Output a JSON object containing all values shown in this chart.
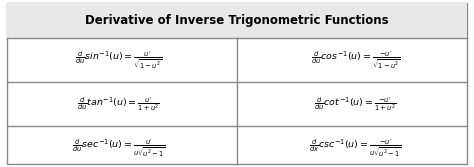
{
  "title": "Derivative of Inverse Trigonometric Functions",
  "background_color": "#ffffff",
  "border_color": "#888888",
  "title_bg": "#e8e8e8",
  "cell_bg": "#ffffff",
  "formulas_left": [
    "$\\frac{d}{du}\\mathit{sin}^{-1}(u) = \\frac{u^{\\prime}}{\\sqrt{1-u^{2}}}$",
    "$\\frac{d}{du}\\mathit{tan}^{-1}(u) = \\frac{u^{\\prime}}{1+u^{2}}$",
    "$\\frac{d}{du}\\mathit{sec}^{-1}(u) = \\frac{u^{\\prime}}{u\\sqrt{u^{2}-1}}$"
  ],
  "formulas_right": [
    "$\\frac{d}{du}\\mathit{cos}^{-1}(u) = \\frac{-u^{\\prime}}{\\sqrt{1-u^{2}}}$",
    "$\\frac{d}{du}\\mathit{cot}^{-1}(u) = \\frac{-u^{\\prime}}{1+u^{2}}$",
    "$\\frac{d}{dx}\\mathit{csc}^{-1}(u) = \\frac{-u^{\\prime}}{u\\sqrt{u^{2}-1}}$"
  ],
  "figsize": [
    4.74,
    1.67
  ],
  "dpi": 100,
  "title_fontsize": 8.5,
  "formula_fontsize": 6.8
}
